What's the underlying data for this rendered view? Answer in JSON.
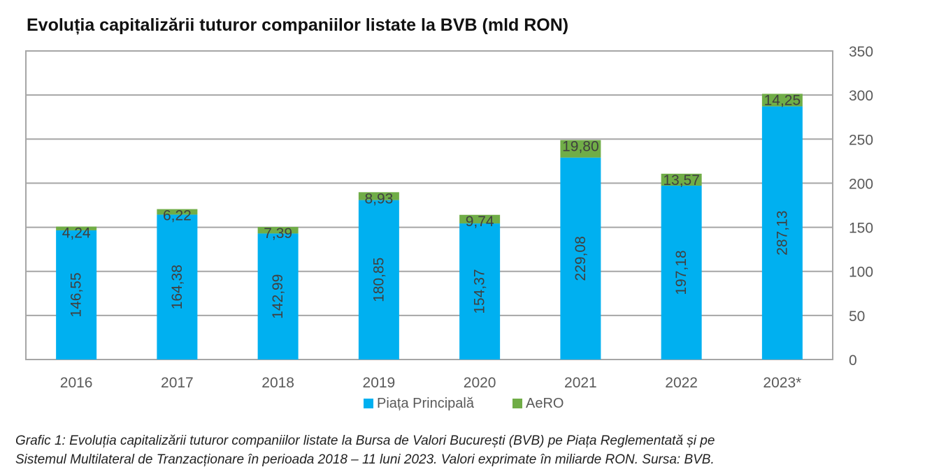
{
  "title": "Evoluția capitalizării tuturor companiilor listate la BVB (mld RON)",
  "caption_lines": [
    "Grafic 1: Evoluția capitalizării tuturor companiilor listate la Bursa de Valori București (BVB) pe Piața Reglementată și pe",
    "Sistemul Multilateral de Tranzacționare în perioada 2018 – 11 luni 2023. Valori exprimate în miliarde RON. Sursa: BVB."
  ],
  "colors": {
    "piata_principala": "#00b0f0",
    "aero": "#70ad47",
    "gridline": "#a6a6a6",
    "axis_text": "#595959",
    "value_label": "#404040"
  },
  "chart_data": {
    "type": "bar",
    "stacked": true,
    "categories": [
      "2016",
      "2017",
      "2018",
      "2019",
      "2020",
      "2021",
      "2022",
      "2023*"
    ],
    "series": [
      {
        "name": "Piața Principală",
        "values": [
          146.55,
          164.38,
          142.99,
          180.85,
          154.37,
          229.08,
          197.18,
          287.13
        ],
        "labels": [
          "146,55",
          "164,38",
          "142,99",
          "180,85",
          "154,37",
          "229,08",
          "197,18",
          "287,13"
        ]
      },
      {
        "name": "AeRO",
        "values": [
          4.24,
          6.22,
          7.39,
          8.93,
          9.74,
          19.8,
          13.57,
          14.25
        ],
        "labels": [
          "4,24",
          "6,22",
          "7,39",
          "8,93",
          "9,74",
          "19,80",
          "13,57",
          "14,25"
        ]
      }
    ],
    "ylim": [
      0,
      350
    ],
    "yticks": [
      0,
      50,
      100,
      150,
      200,
      250,
      300,
      350
    ],
    "y_axis_side": "right",
    "grid": true,
    "legend": "bottom"
  }
}
